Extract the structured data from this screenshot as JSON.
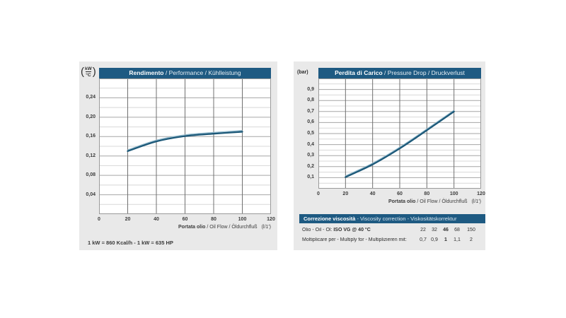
{
  "colors": {
    "header_blue": "#1e5a82",
    "curve_blue": "#1c5878",
    "curve_highlight": "#8fb8cc",
    "card_gray": "#e9e9e9"
  },
  "footnote": "1 kW = 860 Kcal/h - 1 kW = 635 HP",
  "chart_data": [
    {
      "type": "line",
      "title_bold": "Rendimento",
      "title_rest": " / Performance / Kühlleistung",
      "unit_top": "kW",
      "unit_bottom": "°C",
      "xlabel_bold": "Portata olio",
      "xlabel_rest": " / Oil Flow / Öldurchfluß",
      "xlabel_unit": "(l/1')",
      "xlim": [
        0,
        120
      ],
      "ylim": [
        0,
        0.28
      ],
      "x_ticks": [
        0,
        20,
        40,
        60,
        80,
        100,
        120
      ],
      "x_tick_labels": [
        "0",
        "20",
        "40",
        "60",
        "80",
        "100",
        "120"
      ],
      "x_gridlines": [
        20,
        40,
        60,
        80,
        100
      ],
      "y_minor_step": 0.02,
      "y_major_step": 0.04,
      "y_tick_labels": [
        {
          "value": 0.24,
          "label": "0,24"
        },
        {
          "value": 0.2,
          "label": "0,20"
        },
        {
          "value": 0.16,
          "label": "0,16"
        },
        {
          "value": 0.12,
          "label": "0,12"
        },
        {
          "value": 0.08,
          "label": "0,08"
        },
        {
          "value": 0.04,
          "label": "0,04"
        }
      ],
      "x": [
        20,
        40,
        60,
        80,
        100
      ],
      "y": [
        0.13,
        0.15,
        0.161,
        0.166,
        0.17
      ]
    },
    {
      "type": "line",
      "title_bold": "Perdita di Carico",
      "title_rest": " / Pressure Drop / Druckverlust",
      "unit": "(bar)",
      "xlabel_bold": "Portata olio",
      "xlabel_rest": " / Oil Flow / Öldurchfluß",
      "xlabel_unit": "(l/1')",
      "xlim": [
        0,
        120
      ],
      "ylim": [
        0,
        1.0
      ],
      "x_ticks": [
        0,
        20,
        40,
        60,
        80,
        100,
        120
      ],
      "x_tick_labels": [
        "0",
        "20",
        "40",
        "60",
        "80",
        "100",
        "120"
      ],
      "x_gridlines": [
        20,
        40,
        60,
        80,
        100
      ],
      "y_minor_step": 0.05,
      "y_major_step": 0.1,
      "y_tick_labels": [
        {
          "value": 0.9,
          "label": "0,9"
        },
        {
          "value": 0.8,
          "label": "0,8"
        },
        {
          "value": 0.7,
          "label": "0,7"
        },
        {
          "value": 0.6,
          "label": "0,6"
        },
        {
          "value": 0.5,
          "label": "0,5"
        },
        {
          "value": 0.4,
          "label": "0,4"
        },
        {
          "value": 0.3,
          "label": "0,3"
        },
        {
          "value": 0.2,
          "label": "0,2"
        },
        {
          "value": 0.1,
          "label": "0,1"
        }
      ],
      "x": [
        20,
        40,
        60,
        80,
        100
      ],
      "y": [
        0.105,
        0.22,
        0.365,
        0.53,
        0.7
      ]
    }
  ],
  "viscosity_table": {
    "header_bold": "Correzione viscosità",
    "header_rest": " - Viscosity correction - Viskositätskorrektur",
    "rows": [
      {
        "label_plain": "Olio - Oil - Öl: ",
        "label_bold": "ISO VG @ 40 °C",
        "values": [
          "22",
          "32",
          "46",
          "68",
          "150"
        ],
        "bold_index": 2
      },
      {
        "label_plain": "Moltiplicare per - Multiply for - Multiplizieren mit:",
        "label_bold": "",
        "values": [
          "0,7",
          "0,9",
          "1",
          "1,1",
          "2"
        ],
        "bold_index": 2
      }
    ]
  }
}
